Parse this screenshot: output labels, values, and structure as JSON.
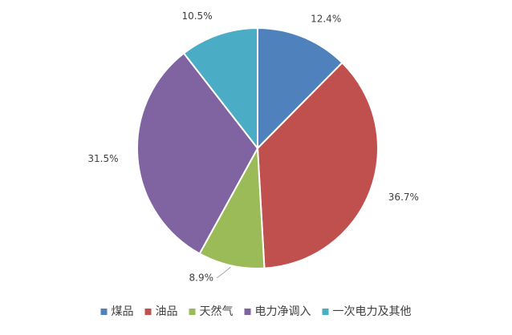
{
  "chart_data": {
    "type": "pie",
    "categories": [
      "煤品",
      "油品",
      "天然气",
      "电力净调入",
      "一次电力及其他"
    ],
    "values": [
      12.4,
      36.7,
      8.9,
      31.5,
      10.5
    ],
    "value_labels": [
      "12.4%",
      "36.7%",
      "8.9%",
      "31.5%",
      "10.5%"
    ],
    "colors": [
      "#4F81BD",
      "#C0504D",
      "#9BBB59",
      "#8064A2",
      "#4BACC6"
    ],
    "start_angle": "12 o'clock",
    "direction": "clockwise",
    "legend_position": "bottom",
    "title": ""
  }
}
